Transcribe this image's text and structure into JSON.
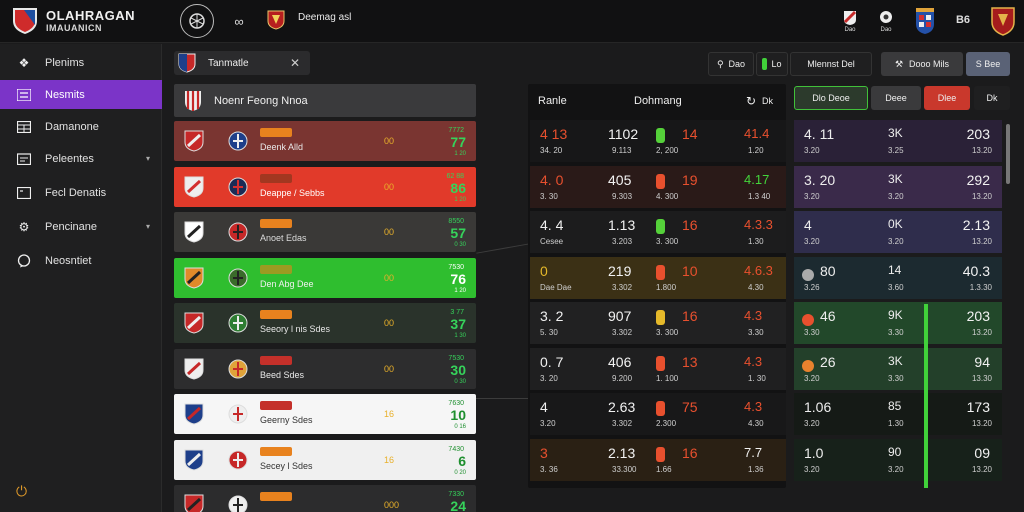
{
  "brand": {
    "title": "OLAHRAGAN",
    "subtitle": "IMAUANICN"
  },
  "topbar": {
    "title": "Deemag asl",
    "left_buttons": [
      "ball-icon",
      "sync-icon"
    ],
    "right_icons": [
      "flag-icon",
      "ball-icon",
      "trophy-icon",
      "theme-icon",
      "shield-icon"
    ],
    "labels": {
      "flag": "Dao",
      "ball": "Dao",
      "theme": "B6"
    }
  },
  "sidebar": {
    "items": [
      {
        "label": "Plenims",
        "icon": "puzzle-icon",
        "active": false,
        "chevron": false
      },
      {
        "label": "Nesmits",
        "icon": "list-icon",
        "active": true,
        "chevron": false
      },
      {
        "label": "Damanone",
        "icon": "grid-icon",
        "active": false,
        "chevron": false
      },
      {
        "label": "Peleentes",
        "icon": "calendar-icon",
        "active": false,
        "chevron": true
      },
      {
        "label": "Fecl Denatis",
        "icon": "document-icon",
        "active": false,
        "chevron": false
      },
      {
        "label": "Pencinane",
        "icon": "settings-icon",
        "active": false,
        "chevron": true
      },
      {
        "label": "Neosntiet",
        "icon": "chat-icon",
        "active": false,
        "chevron": false
      }
    ]
  },
  "filter": {
    "label": "Tanmatle",
    "close": "✕"
  },
  "list_header": {
    "title": "Noenr Feong Nnoa"
  },
  "matches": [
    {
      "team": "Deenk Alld",
      "tag_color": "#e8821e",
      "mid": "00",
      "top_num": "7772",
      "score": "77",
      "sub": "1 20",
      "bg": "#7a3531",
      "score_color": "#36d35b",
      "team_color": "#e8e8e8"
    },
    {
      "team": "Deappe / Sebbs",
      "tag_color": "#a23720",
      "mid": "00",
      "top_num": "62 88",
      "score": "86",
      "sub": "1 20",
      "bg": "#e13a2a",
      "score_color": "#36d35b",
      "team_color": "#fff"
    },
    {
      "team": "Anoet Edas",
      "tag_color": "#e8821e",
      "mid": "00",
      "top_num": "8550",
      "score": "57",
      "sub": "0 30",
      "bg": "#3a3937",
      "score_color": "#36d35b",
      "team_color": "#dcdcdc"
    },
    {
      "team": "Den Abg Dee",
      "tag_color": "#9b9b22",
      "mid": "00",
      "top_num": "7530",
      "score": "76",
      "sub": "1 20",
      "bg": "#2fbe2f",
      "score_color": "#ffffff",
      "team_color": "#f0f0f0"
    },
    {
      "team": "Seeory l nis Sdes",
      "tag_color": "#e8821e",
      "mid": "00",
      "top_num": "3 77",
      "score": "37",
      "sub": "1 30",
      "bg": "#2a332b",
      "score_color": "#36d35b",
      "team_color": "#e8e8e8"
    },
    {
      "team": "Beed Sdes",
      "tag_color": "#c4302a",
      "mid": "00",
      "top_num": "7530",
      "score": "30",
      "sub": "0 30",
      "bg": "#2d2d2e",
      "score_color": "#36d35b",
      "team_color": "#e8e8e8"
    },
    {
      "team": "Geerny Sdes",
      "tag_color": "#c4302a",
      "mid": "16",
      "top_num": "7630",
      "score": "10",
      "sub": "0 16",
      "bg": "#f6f6f6",
      "score_color": "#1e8f2e",
      "team_color": "#333"
    },
    {
      "team": "Secey l Sdes",
      "tag_color": "#e8821e",
      "mid": "16",
      "top_num": "7430",
      "score": "6",
      "sub": "0 20",
      "bg": "#f0f0f0",
      "score_color": "#1e8f2e",
      "team_color": "#333"
    },
    {
      "team": "",
      "tag_color": "#e8821e",
      "mid": "000",
      "top_num": "7330",
      "score": "24",
      "sub": "",
      "bg": "#2c2c2d",
      "score_color": "#36d35b",
      "team_color": "#e8e8e8"
    }
  ],
  "stats": {
    "headers": [
      "Ranle",
      "Dohmang"
    ],
    "controls": [
      "cycle-icon",
      "Dk"
    ],
    "rows": [
      {
        "a": "4 13",
        "a2": "34. 20",
        "b": "1102",
        "b2": "9.113",
        "pill": "#55d13a",
        "c": "14",
        "c2": "2, 200",
        "d": "41.4",
        "d2": "1.20",
        "a_color": "#e8502e",
        "c_color": "#e8502e",
        "d_color": "#e8502e",
        "bg": "#171718"
      },
      {
        "a": "4. 0",
        "a2": "3. 30",
        "b": "405",
        "b2": "9.303",
        "pill": "#e8502e",
        "c": "19",
        "c2": "4. 300",
        "d": "4.17",
        "d2": "1.3 40",
        "a_color": "#e8502e",
        "c_color": "#e8502e",
        "d_color": "#43d43b",
        "bg": "#2a1a18"
      },
      {
        "a": "4. 4",
        "a2": "Cesee",
        "b": "1.13",
        "b2": "3.203",
        "pill": "#55d13a",
        "c": "16",
        "c2": "3. 300",
        "d": "4.3.3",
        "d2": "1.30",
        "a_color": "#f0f0f0",
        "c_color": "#e8502e",
        "d_color": "#e8502e",
        "bg": "#1c1c1d"
      },
      {
        "a": "0",
        "a2": "Dae Dae",
        "b": "219",
        "b2": "3.302",
        "pill": "#e8502e",
        "c": "10",
        "c2": "1.800",
        "d": "4.6.3",
        "d2": "4.30",
        "a_color": "#e5b92a",
        "c_color": "#e8502e",
        "d_color": "#e8502e",
        "bg": "#3b3015"
      },
      {
        "a": "3. 2",
        "a2": "5. 30",
        "b": "907",
        "b2": "3.302",
        "pill": "#e5b92a",
        "c": "16",
        "c2": "3. 300",
        "d": "4.3",
        "d2": "3.30",
        "a_color": "#f0f0f0",
        "c_color": "#e8502e",
        "d_color": "#e8502e",
        "bg": "#212122"
      },
      {
        "a": "0. 7",
        "a2": "3. 20",
        "b": "406",
        "b2": "9.200",
        "pill": "#e8502e",
        "c": "13",
        "c2": "1. 100",
        "d": "4.3",
        "d2": "1. 30",
        "a_color": "#f0f0f0",
        "c_color": "#e8502e",
        "d_color": "#e8502e",
        "bg": "#1f1f20"
      },
      {
        "a": "4",
        "a2": "3.20",
        "b": "2.63",
        "b2": "3.302",
        "pill": "#e8502e",
        "c": "75",
        "c2": "2.300",
        "d": "4.3",
        "d2": "4.30",
        "a_color": "#f0f0f0",
        "c_color": "#e8502e",
        "d_color": "#e8502e",
        "bg": "#181819"
      },
      {
        "a": "3",
        "a2": "3. 36",
        "b": "2.13",
        "b2": "33.300",
        "pill": "#e8502e",
        "c": "16",
        "c2": "1.66",
        "d": "7.7",
        "d2": "1.36",
        "a_color": "#e8502e",
        "c_color": "#e8502e",
        "d_color": "#f0f0f0",
        "bg": "#2a2014"
      }
    ]
  },
  "toolbar": {
    "search": "Dao",
    "live": "Lo",
    "filter": "Mlennst Del",
    "action": "Dooo Mils",
    "small": "S Bee"
  },
  "right_tabs": [
    "Dlo Deoe",
    "Deee",
    "Dlee",
    "Dk"
  ],
  "right_rows": [
    {
      "r": "4. 11",
      "r2": "3.20",
      "m": "3K",
      "m2": "3.25",
      "e": "203",
      "e2": "13.20",
      "bg": "#2a2137",
      "dot": ""
    },
    {
      "r": "3. 20",
      "r2": "3.20",
      "m": "3K",
      "m2": "3.20",
      "e": "292",
      "e2": "13.20",
      "bg": "#3a2a4a",
      "dot": ""
    },
    {
      "r": "4",
      "r2": "3.20",
      "m": "0K",
      "m2": "3.20",
      "e": "2.13",
      "e2": "13.20",
      "bg": "#2f2d4c",
      "dot": ""
    },
    {
      "r": "80",
      "r2": "3.26",
      "m": "14",
      "m2": "3.60",
      "e": "40.3",
      "e2": "1.3.30",
      "bg": "#1c2a30",
      "dot": "#aaaaaa"
    },
    {
      "r": "46",
      "r2": "3.30",
      "m": "9K",
      "m2": "3.30",
      "e": "203",
      "e2": "13.20",
      "bg": "#22482a",
      "dot": "#e8502e"
    },
    {
      "r": "26",
      "r2": "3.20",
      "m": "3K",
      "m2": "3.30",
      "e": "94",
      "e2": "13.30",
      "bg": "#23402a",
      "dot": "#e8822e"
    },
    {
      "r": "1.06",
      "r2": "3.20",
      "m": "85",
      "m2": "1.30",
      "e": "173",
      "e2": "13.20",
      "bg": "#151a16",
      "dot": ""
    },
    {
      "r": "1.0",
      "r2": "3.20",
      "m": "90",
      "m2": "3.20",
      "e": "09",
      "e2": "13.20",
      "bg": "#17211a",
      "dot": ""
    }
  ]
}
